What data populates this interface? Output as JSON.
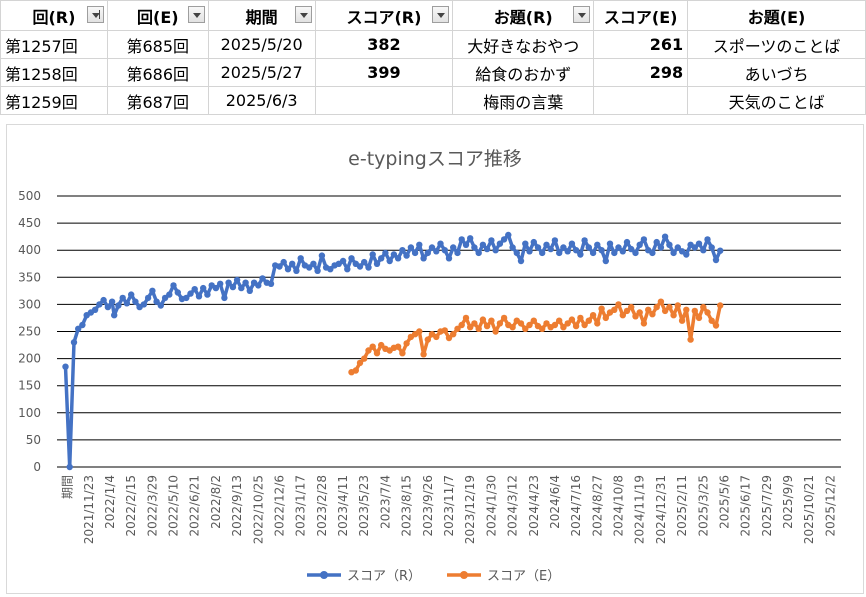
{
  "table": {
    "headers": [
      "回(R)",
      "回(E)",
      "期間",
      "スコア(R)",
      "お題(R)",
      "スコア(E)",
      "お題(E)"
    ],
    "rows": [
      [
        "第1257回",
        "第685回",
        "2025/5/20",
        "382",
        "大好きなおやつ",
        "261",
        "スポーツのことば"
      ],
      [
        "第1258回",
        "第686回",
        "2025/5/27",
        "399",
        "給食のおかず",
        "298",
        "あいづち"
      ],
      [
        "第1259回",
        "第687回",
        "2025/6/3",
        "",
        "梅雨の言葉",
        "",
        "天気のことば"
      ]
    ]
  },
  "chart_data": {
    "type": "line",
    "title": "e-typingスコア推移",
    "ylim": [
      0,
      500
    ],
    "yticks": [
      0,
      50,
      100,
      150,
      200,
      250,
      300,
      350,
      400,
      450,
      500
    ],
    "xticklabels": [
      "期間",
      "2021/11/23",
      "2022/1/4",
      "2022/2/15",
      "2022/3/29",
      "2022/5/10",
      "2022/6/21",
      "2022/8/2",
      "2022/9/13",
      "2022/10/25",
      "2022/12/6",
      "2023/1/17",
      "2023/2/28",
      "2023/4/11",
      "2023/5/23",
      "2023/7/4",
      "2023/8/15",
      "2023/9/26",
      "2023/11/7",
      "2023/12/19",
      "2024/1/30",
      "2024/3/12",
      "2024/4/23",
      "2024/6/4",
      "2024/7/16",
      "2024/8/27",
      "2024/10/8",
      "2024/11/19",
      "2024/12/31",
      "2025/2/11",
      "2025/3/25",
      "2025/5/6",
      "2025/6/17",
      "2025/7/29",
      "2025/9/9",
      "2025/10/21",
      "2025/12/2"
    ],
    "grid": true,
    "legend": "bottom",
    "series": [
      {
        "name": "スコア（R）",
        "color": "#4472c4",
        "points": [
          [
            -0.1,
            185
          ],
          [
            0.1,
            0
          ],
          [
            0.3,
            230
          ],
          [
            0.5,
            255
          ],
          [
            0.7,
            262
          ],
          [
            0.9,
            280
          ],
          [
            1.1,
            285
          ],
          [
            1.3,
            290
          ],
          [
            1.5,
            300
          ],
          [
            1.7,
            308
          ],
          [
            1.9,
            295
          ],
          [
            2.1,
            305
          ],
          [
            2.2,
            280
          ],
          [
            2.4,
            298
          ],
          [
            2.6,
            312
          ],
          [
            2.8,
            302
          ],
          [
            3.0,
            318
          ],
          [
            3.2,
            305
          ],
          [
            3.4,
            295
          ],
          [
            3.6,
            300
          ],
          [
            3.8,
            312
          ],
          [
            4.0,
            325
          ],
          [
            4.2,
            305
          ],
          [
            4.4,
            298
          ],
          [
            4.6,
            312
          ],
          [
            4.8,
            318
          ],
          [
            5.0,
            335
          ],
          [
            5.2,
            322
          ],
          [
            5.4,
            310
          ],
          [
            5.6,
            312
          ],
          [
            5.8,
            320
          ],
          [
            6.0,
            328
          ],
          [
            6.2,
            315
          ],
          [
            6.4,
            330
          ],
          [
            6.6,
            318
          ],
          [
            6.8,
            335
          ],
          [
            7.0,
            330
          ],
          [
            7.2,
            338
          ],
          [
            7.4,
            312
          ],
          [
            7.6,
            340
          ],
          [
            7.8,
            332
          ],
          [
            8.0,
            345
          ],
          [
            8.2,
            330
          ],
          [
            8.4,
            340
          ],
          [
            8.6,
            325
          ],
          [
            8.8,
            340
          ],
          [
            9.0,
            335
          ],
          [
            9.2,
            348
          ],
          [
            9.4,
            340
          ],
          [
            9.6,
            338
          ],
          [
            9.8,
            372
          ],
          [
            10.0,
            370
          ],
          [
            10.2,
            378
          ],
          [
            10.4,
            365
          ],
          [
            10.6,
            375
          ],
          [
            10.8,
            362
          ],
          [
            11.0,
            385
          ],
          [
            11.2,
            372
          ],
          [
            11.4,
            368
          ],
          [
            11.6,
            375
          ],
          [
            11.8,
            362
          ],
          [
            12.0,
            390
          ],
          [
            12.2,
            368
          ],
          [
            12.4,
            365
          ],
          [
            12.6,
            372
          ],
          [
            12.8,
            375
          ],
          [
            13.0,
            380
          ],
          [
            13.2,
            365
          ],
          [
            13.4,
            385
          ],
          [
            13.6,
            375
          ],
          [
            13.8,
            370
          ],
          [
            14.0,
            378
          ],
          [
            14.2,
            368
          ],
          [
            14.4,
            392
          ],
          [
            14.6,
            375
          ],
          [
            14.8,
            385
          ],
          [
            15.0,
            395
          ],
          [
            15.2,
            380
          ],
          [
            15.4,
            392
          ],
          [
            15.6,
            385
          ],
          [
            15.8,
            400
          ],
          [
            16.0,
            390
          ],
          [
            16.2,
            405
          ],
          [
            16.4,
            395
          ],
          [
            16.6,
            410
          ],
          [
            16.8,
            385
          ],
          [
            17.0,
            395
          ],
          [
            17.2,
            405
          ],
          [
            17.4,
            398
          ],
          [
            17.6,
            412
          ],
          [
            17.8,
            400
          ],
          [
            18.0,
            385
          ],
          [
            18.2,
            405
          ],
          [
            18.4,
            395
          ],
          [
            18.6,
            420
          ],
          [
            18.8,
            410
          ],
          [
            19.0,
            422
          ],
          [
            19.2,
            405
          ],
          [
            19.4,
            395
          ],
          [
            19.6,
            410
          ],
          [
            19.8,
            402
          ],
          [
            20.0,
            418
          ],
          [
            20.2,
            400
          ],
          [
            20.4,
            412
          ],
          [
            20.6,
            420
          ],
          [
            20.8,
            428
          ],
          [
            21.0,
            405
          ],
          [
            21.2,
            395
          ],
          [
            21.4,
            380
          ],
          [
            21.6,
            412
          ],
          [
            21.8,
            398
          ],
          [
            22.0,
            415
          ],
          [
            22.2,
            405
          ],
          [
            22.4,
            395
          ],
          [
            22.6,
            410
          ],
          [
            22.8,
            402
          ],
          [
            23.0,
            418
          ],
          [
            23.2,
            395
          ],
          [
            23.4,
            405
          ],
          [
            23.6,
            398
          ],
          [
            23.8,
            412
          ],
          [
            24.0,
            400
          ],
          [
            24.2,
            392
          ],
          [
            24.4,
            418
          ],
          [
            24.6,
            405
          ],
          [
            24.8,
            395
          ],
          [
            25.0,
            410
          ],
          [
            25.2,
            400
          ],
          [
            25.4,
            380
          ],
          [
            25.6,
            412
          ],
          [
            25.8,
            395
          ],
          [
            26.0,
            405
          ],
          [
            26.2,
            398
          ],
          [
            26.4,
            415
          ],
          [
            26.6,
            402
          ],
          [
            26.8,
            395
          ],
          [
            27.0,
            410
          ],
          [
            27.2,
            420
          ],
          [
            27.4,
            400
          ],
          [
            27.6,
            395
          ],
          [
            27.8,
            415
          ],
          [
            28.0,
            405
          ],
          [
            28.2,
            425
          ],
          [
            28.4,
            410
          ],
          [
            28.6,
            395
          ],
          [
            28.8,
            405
          ],
          [
            29.0,
            398
          ],
          [
            29.2,
            392
          ],
          [
            29.4,
            410
          ],
          [
            29.6,
            405
          ],
          [
            29.8,
            412
          ],
          [
            30.0,
            400
          ],
          [
            30.2,
            420
          ],
          [
            30.4,
            405
          ],
          [
            30.6,
            382
          ],
          [
            30.8,
            399
          ]
        ]
      },
      {
        "name": "スコア（E）",
        "color": "#ed7d31",
        "points": [
          [
            13.4,
            175
          ],
          [
            13.6,
            178
          ],
          [
            13.8,
            192
          ],
          [
            14.0,
            200
          ],
          [
            14.2,
            215
          ],
          [
            14.4,
            222
          ],
          [
            14.6,
            210
          ],
          [
            14.8,
            225
          ],
          [
            15.0,
            218
          ],
          [
            15.2,
            215
          ],
          [
            15.4,
            220
          ],
          [
            15.6,
            222
          ],
          [
            15.8,
            210
          ],
          [
            16.0,
            228
          ],
          [
            16.2,
            240
          ],
          [
            16.4,
            245
          ],
          [
            16.6,
            250
          ],
          [
            16.8,
            208
          ],
          [
            17.0,
            235
          ],
          [
            17.2,
            245
          ],
          [
            17.4,
            240
          ],
          [
            17.6,
            250
          ],
          [
            17.8,
            252
          ],
          [
            18.0,
            238
          ],
          [
            18.2,
            245
          ],
          [
            18.4,
            255
          ],
          [
            18.6,
            262
          ],
          [
            18.8,
            275
          ],
          [
            19.0,
            258
          ],
          [
            19.2,
            265
          ],
          [
            19.4,
            255
          ],
          [
            19.6,
            272
          ],
          [
            19.8,
            260
          ],
          [
            20.0,
            270
          ],
          [
            20.2,
            250
          ],
          [
            20.4,
            265
          ],
          [
            20.6,
            275
          ],
          [
            20.8,
            262
          ],
          [
            21.0,
            258
          ],
          [
            21.2,
            270
          ],
          [
            21.4,
            265
          ],
          [
            21.6,
            255
          ],
          [
            21.8,
            262
          ],
          [
            22.0,
            270
          ],
          [
            22.2,
            260
          ],
          [
            22.4,
            255
          ],
          [
            22.6,
            265
          ],
          [
            22.8,
            258
          ],
          [
            23.0,
            262
          ],
          [
            23.2,
            270
          ],
          [
            23.4,
            258
          ],
          [
            23.6,
            265
          ],
          [
            23.8,
            272
          ],
          [
            24.0,
            260
          ],
          [
            24.2,
            275
          ],
          [
            24.4,
            262
          ],
          [
            24.6,
            270
          ],
          [
            24.8,
            280
          ],
          [
            25.0,
            265
          ],
          [
            25.2,
            292
          ],
          [
            25.4,
            275
          ],
          [
            25.6,
            285
          ],
          [
            25.8,
            290
          ],
          [
            26.0,
            300
          ],
          [
            26.2,
            280
          ],
          [
            26.4,
            288
          ],
          [
            26.6,
            295
          ],
          [
            26.8,
            278
          ],
          [
            27.0,
            285
          ],
          [
            27.2,
            265
          ],
          [
            27.4,
            290
          ],
          [
            27.6,
            282
          ],
          [
            27.8,
            295
          ],
          [
            28.0,
            305
          ],
          [
            28.2,
            288
          ],
          [
            28.4,
            295
          ],
          [
            28.6,
            280
          ],
          [
            28.8,
            298
          ],
          [
            29.0,
            270
          ],
          [
            29.2,
            290
          ],
          [
            29.4,
            235
          ],
          [
            29.6,
            288
          ],
          [
            29.8,
            275
          ],
          [
            30.0,
            295
          ],
          [
            30.2,
            285
          ],
          [
            30.4,
            270
          ],
          [
            30.6,
            261
          ],
          [
            30.8,
            298
          ]
        ]
      }
    ]
  }
}
